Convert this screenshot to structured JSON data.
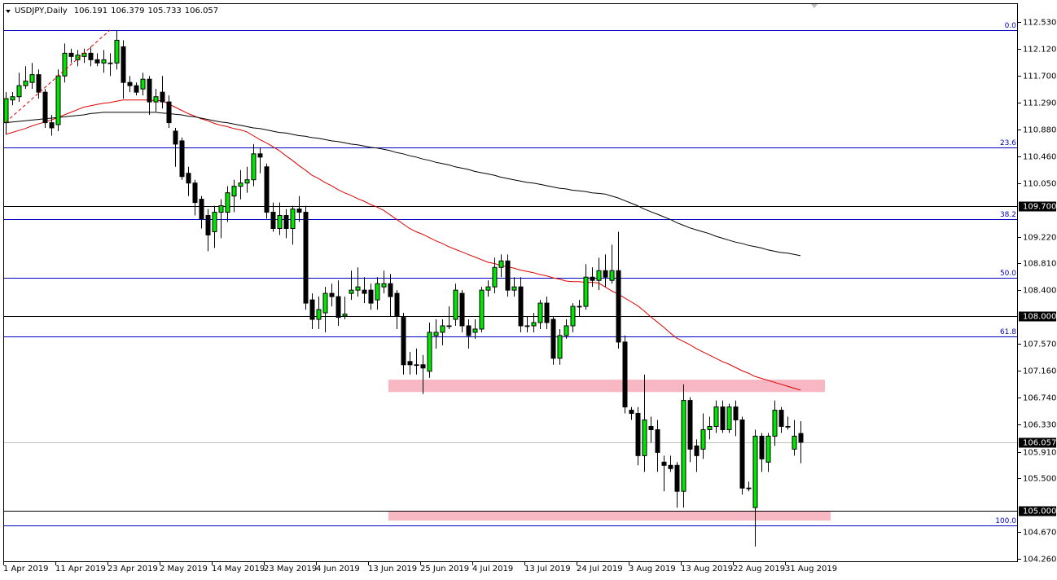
{
  "chart_data": {
    "type": "candlestick",
    "title": "USDJPY,Daily",
    "categories": [
      "1 Apr 2019",
      null,
      null,
      null,
      null,
      null,
      null,
      null,
      "11 Apr 2019",
      null,
      null,
      null,
      null,
      null,
      null,
      null,
      "23 Apr 2019",
      null,
      null,
      null,
      null,
      null,
      null,
      null,
      "2 May 2019",
      null,
      null,
      null,
      null,
      null,
      null,
      null,
      "14 May 2019",
      null,
      null,
      null,
      null,
      null,
      null,
      null,
      "23 May 2019",
      null,
      null,
      null,
      null,
      null,
      null,
      null,
      "4 Jun 2019",
      null,
      null,
      null,
      null,
      null,
      null,
      null,
      "13 Jun 2019",
      null,
      null,
      null,
      null,
      null,
      null,
      null,
      "25 Jun 2019",
      null,
      null,
      null,
      null,
      null,
      null,
      null,
      "4 Jul 2019",
      null,
      null,
      null,
      null,
      null,
      null,
      null,
      "13 Jul 2019",
      null,
      null,
      null,
      null,
      null,
      null,
      null,
      "24 Jul 2019",
      null,
      null,
      null,
      null,
      null,
      null,
      null,
      "3 Aug 2019",
      null,
      null,
      null,
      null,
      null,
      null,
      null,
      "13 Aug 2019",
      null,
      null,
      null,
      null,
      null,
      null,
      null,
      "22 Aug 2019",
      null,
      null,
      null,
      null,
      null,
      null,
      null,
      "31 Aug 2019",
      null,
      null
    ],
    "open": [
      110.98,
      111.33,
      111.38,
      111.55,
      111.6,
      111.72,
      111.45,
      110.98,
      110.95,
      111.7,
      112.05,
      111.95,
      112.0,
      112.05,
      111.95,
      111.9,
      111.9,
      111.9,
      112.15,
      111.6,
      111.55,
      111.5,
      111.65,
      111.3,
      111.45,
      111.3,
      110.85,
      110.7,
      110.2,
      110.05,
      109.8,
      109.55,
      109.3,
      109.6,
      109.6,
      109.85,
      110.0,
      110.05,
      110.1,
      110.5,
      110.3,
      109.6,
      109.35,
      109.55,
      109.35,
      109.65,
      109.6,
      108.25,
      107.95,
      108.05,
      108.35,
      108.3,
      108.0,
      108.35,
      108.4,
      108.4,
      108.4,
      108.25,
      108.45,
      108.5,
      108.35,
      107.98,
      107.3,
      107.25,
      107.25,
      107.15,
      107.7,
      107.75,
      107.85,
      107.95,
      108.35,
      107.85,
      107.75,
      107.8,
      108.4,
      108.45,
      108.75,
      108.85,
      108.4,
      108.45,
      107.85,
      107.85,
      107.9,
      108.2,
      107.95,
      107.35,
      107.7,
      107.85,
      108.15,
      108.15,
      108.6,
      108.55,
      108.7,
      108.55,
      108.7,
      107.6,
      106.55,
      106.5,
      105.85,
      106.3,
      106.25,
      105.75,
      105.7,
      105.7,
      105.3,
      106.7,
      106.0,
      105.95,
      106.25,
      106.3,
      106.6,
      106.25,
      106.6,
      106.4,
      105.35,
      105.05,
      106.15,
      105.75,
      106.15,
      106.55,
      106.3,
      105.95,
      106.191
    ],
    "high": [
      111.45,
      111.45,
      111.75,
      111.85,
      111.9,
      111.8,
      111.5,
      111.1,
      111.8,
      112.2,
      112.12,
      112.1,
      112.12,
      112.15,
      112.05,
      112.1,
      112.05,
      112.4,
      112.25,
      111.7,
      111.6,
      111.75,
      111.7,
      111.5,
      111.7,
      111.4,
      110.9,
      110.75,
      110.3,
      110.1,
      109.85,
      109.65,
      109.7,
      109.8,
      110.0,
      110.1,
      110.25,
      110.3,
      110.65,
      110.6,
      110.35,
      109.75,
      109.75,
      109.65,
      109.7,
      109.85,
      109.7,
      108.35,
      108.3,
      108.45,
      108.5,
      108.55,
      108.3,
      108.7,
      108.75,
      108.6,
      108.5,
      108.6,
      108.7,
      108.65,
      108.4,
      108.05,
      107.45,
      107.5,
      107.4,
      107.9,
      107.95,
      107.95,
      108.15,
      108.5,
      108.4,
      107.95,
      107.95,
      108.45,
      108.55,
      108.9,
      108.95,
      108.95,
      108.6,
      108.6,
      108.0,
      108.05,
      108.25,
      108.3,
      108.0,
      107.8,
      107.95,
      108.2,
      108.25,
      108.8,
      108.75,
      108.9,
      108.95,
      109.1,
      109.3,
      107.7,
      106.6,
      106.6,
      107.1,
      106.45,
      106.4,
      105.85,
      105.85,
      105.75,
      106.95,
      106.75,
      106.1,
      106.5,
      106.45,
      106.7,
      106.7,
      106.65,
      106.7,
      106.45,
      105.45,
      106.25,
      106.2,
      106.2,
      106.7,
      106.6,
      106.45,
      106.4,
      106.379
    ],
    "low": [
      110.8,
      111.25,
      111.3,
      111.5,
      111.5,
      111.35,
      110.9,
      110.78,
      110.85,
      111.6,
      111.9,
      111.85,
      111.9,
      111.85,
      111.85,
      111.75,
      111.7,
      111.8,
      111.35,
      111.45,
      111.4,
      111.4,
      111.1,
      111.15,
      111.2,
      110.9,
      110.3,
      110.1,
      109.85,
      109.55,
      109.35,
      109.0,
      109.05,
      109.2,
      109.45,
      109.6,
      109.8,
      109.9,
      110.0,
      110.2,
      109.5,
      109.3,
      109.25,
      109.2,
      109.1,
      109.45,
      108.1,
      107.8,
      107.8,
      107.75,
      108.15,
      107.85,
      107.95,
      108.25,
      108.3,
      108.2,
      108.1,
      108.1,
      108.35,
      108.0,
      107.8,
      107.1,
      107.1,
      107.1,
      106.8,
      107.05,
      107.5,
      107.55,
      107.8,
      107.85,
      107.75,
      107.5,
      107.65,
      107.75,
      108.3,
      108.35,
      108.6,
      108.3,
      108.3,
      107.75,
      107.75,
      107.75,
      107.8,
      107.8,
      107.25,
      107.25,
      107.65,
      107.75,
      108.0,
      108.1,
      108.45,
      108.4,
      108.45,
      108.5,
      107.5,
      106.5,
      106.4,
      105.7,
      105.6,
      106.05,
      105.6,
      105.3,
      105.6,
      105.05,
      105.05,
      105.75,
      105.6,
      105.8,
      106.1,
      106.2,
      106.2,
      106.2,
      106.15,
      105.25,
      105.3,
      104.45,
      105.6,
      105.6,
      106.0,
      106.2,
      106.25,
      105.85,
      105.733
    ],
    "close": [
      111.35,
      111.38,
      111.55,
      111.62,
      111.72,
      111.45,
      110.98,
      110.9,
      111.7,
      112.05,
      112.0,
      112.02,
      112.05,
      111.95,
      111.9,
      111.95,
      111.9,
      112.25,
      111.6,
      111.55,
      111.45,
      111.65,
      111.3,
      111.38,
      111.3,
      110.98,
      110.65,
      110.15,
      110.05,
      109.75,
      109.5,
      109.25,
      109.6,
      109.7,
      109.9,
      110.0,
      110.05,
      110.1,
      110.5,
      110.45,
      109.6,
      109.35,
      109.55,
      109.35,
      109.65,
      109.6,
      108.2,
      107.95,
      108.1,
      108.35,
      108.3,
      107.98,
      108.03,
      108.4,
      108.45,
      108.35,
      108.2,
      108.5,
      108.5,
      108.3,
      108.0,
      107.25,
      107.25,
      107.25,
      107.2,
      107.75,
      107.75,
      107.85,
      107.85,
      108.4,
      107.85,
      107.7,
      107.8,
      108.4,
      108.45,
      108.75,
      108.85,
      108.4,
      108.45,
      107.85,
      107.85,
      107.9,
      108.2,
      107.9,
      107.35,
      107.7,
      107.85,
      108.15,
      108.15,
      108.6,
      108.55,
      108.7,
      108.6,
      108.7,
      107.6,
      106.6,
      106.5,
      105.85,
      106.4,
      106.25,
      105.9,
      105.7,
      105.65,
      105.3,
      106.7,
      105.95,
      105.85,
      106.25,
      106.3,
      106.6,
      106.25,
      106.6,
      106.4,
      105.35,
      105.35,
      106.15,
      105.8,
      106.15,
      106.55,
      106.3,
      106.3,
      106.15,
      106.057
    ],
    "up_color": "#00e600",
    "down_color": "#000000",
    "ylim": [
      104.21,
      112.82
    ],
    "yticks": [
      {
        "value": 112.53,
        "label": "112.530"
      },
      {
        "value": 112.12,
        "label": "112.120"
      },
      {
        "value": 111.7,
        "label": "111.700"
      },
      {
        "value": 111.29,
        "label": "111.290"
      },
      {
        "value": 110.88,
        "label": "110.880"
      },
      {
        "value": 110.46,
        "label": "110.460"
      },
      {
        "value": 110.05,
        "label": "110.050"
      },
      {
        "value": 109.22,
        "label": "109.220"
      },
      {
        "value": 108.81,
        "label": "108.810"
      },
      {
        "value": 108.4,
        "label": "108.400"
      },
      {
        "value": 107.57,
        "label": "107.570"
      },
      {
        "value": 107.16,
        "label": "107.160"
      },
      {
        "value": 106.74,
        "label": "106.740"
      },
      {
        "value": 106.33,
        "label": "106.330"
      },
      {
        "value": 105.91,
        "label": "105.910"
      },
      {
        "value": 105.5,
        "label": "105.500"
      },
      {
        "value": 104.67,
        "label": "104.670"
      },
      {
        "value": 104.26,
        "label": "104.260"
      }
    ],
    "moving_averages": [
      {
        "color": "#e00000",
        "values": [
          110.8,
          110.83,
          110.86,
          110.89,
          110.93,
          110.96,
          110.99,
          111.02,
          111.06,
          111.1,
          111.14,
          111.18,
          111.22,
          111.24,
          111.26,
          111.28,
          111.29,
          111.31,
          111.33,
          111.33,
          111.33,
          111.33,
          111.33,
          111.32,
          111.32,
          111.27,
          111.22,
          111.17,
          111.12,
          111.08,
          111.04,
          111.01,
          110.97,
          110.94,
          110.92,
          110.89,
          110.87,
          110.84,
          110.78,
          110.72,
          110.67,
          110.61,
          110.55,
          110.47,
          110.4,
          110.32,
          110.25,
          110.17,
          110.12,
          110.06,
          110.01,
          109.95,
          109.9,
          109.86,
          109.81,
          109.77,
          109.72,
          109.68,
          109.63,
          109.56,
          109.49,
          109.42,
          109.35,
          109.3,
          109.26,
          109.21,
          109.16,
          109.12,
          109.07,
          109.03,
          108.99,
          108.95,
          108.91,
          108.87,
          108.83,
          108.81,
          108.78,
          108.76,
          108.74,
          108.71,
          108.69,
          108.67,
          108.64,
          108.62,
          108.59,
          108.57,
          108.54,
          108.53,
          108.53,
          108.52,
          108.52,
          108.51,
          108.45,
          108.39,
          108.34,
          108.28,
          108.22,
          108.16,
          108.08,
          107.99,
          107.91,
          107.83,
          107.74,
          107.66,
          107.61,
          107.56,
          107.5,
          107.45,
          107.4,
          107.35,
          107.3,
          107.26,
          107.21,
          107.16,
          107.12,
          107.07,
          107.04,
          107.01,
          106.98,
          106.95,
          106.92,
          106.89,
          106.86
        ]
      },
      {
        "color": "#000000",
        "values": [
          110.98,
          110.99,
          111.0,
          111.01,
          111.02,
          111.03,
          111.04,
          111.05,
          111.06,
          111.07,
          111.08,
          111.09,
          111.1,
          111.12,
          111.13,
          111.14,
          111.14,
          111.14,
          111.14,
          111.14,
          111.14,
          111.14,
          111.14,
          111.14,
          111.13,
          111.12,
          111.11,
          111.1,
          111.08,
          111.07,
          111.05,
          111.03,
          111.01,
          110.99,
          110.98,
          110.96,
          110.94,
          110.92,
          110.9,
          110.89,
          110.87,
          110.85,
          110.83,
          110.82,
          110.8,
          110.78,
          110.77,
          110.75,
          110.74,
          110.72,
          110.7,
          110.69,
          110.67,
          110.65,
          110.64,
          110.62,
          110.6,
          110.59,
          110.57,
          110.55,
          110.52,
          110.5,
          110.47,
          110.45,
          110.42,
          110.4,
          110.37,
          110.35,
          110.33,
          110.3,
          110.28,
          110.26,
          110.23,
          110.21,
          110.19,
          110.17,
          110.14,
          110.12,
          110.1,
          110.08,
          110.06,
          110.05,
          110.03,
          110.01,
          109.99,
          109.97,
          109.96,
          109.94,
          109.93,
          109.92,
          109.9,
          109.89,
          109.88,
          109.85,
          109.82,
          109.78,
          109.74,
          109.7,
          109.65,
          109.61,
          109.57,
          109.53,
          109.49,
          109.44,
          109.4,
          109.36,
          109.33,
          109.3,
          109.27,
          109.23,
          109.2,
          109.17,
          109.14,
          109.12,
          109.09,
          109.07,
          109.05,
          109.02,
          109.0,
          108.98,
          108.97,
          108.95,
          108.93
        ]
      }
    ],
    "level_color": "#000000",
    "levels": [
      {
        "value": 109.7,
        "label": "109.700"
      },
      {
        "value": 108.0,
        "label": "108.000"
      },
      {
        "value": 105.0,
        "label": "105.000"
      }
    ],
    "fibonacci": {
      "color": "#0000c0",
      "levels": [
        {
          "value": 112.405,
          "label": "0.0"
        },
        {
          "value": 110.604,
          "label": "23.6"
        },
        {
          "value": 109.49,
          "label": "38.2"
        },
        {
          "value": 108.59,
          "label": "50.0"
        },
        {
          "value": 107.69,
          "label": "61.8"
        },
        {
          "value": 104.775,
          "label": "100.0"
        }
      ]
    },
    "zones": {
      "color": "#f7b7c3",
      "ranges": [
        [
          107.02,
          106.83
        ],
        [
          105.0,
          104.85
        ]
      ]
    },
    "current_price_color": "#c0c0c0"
  }
}
